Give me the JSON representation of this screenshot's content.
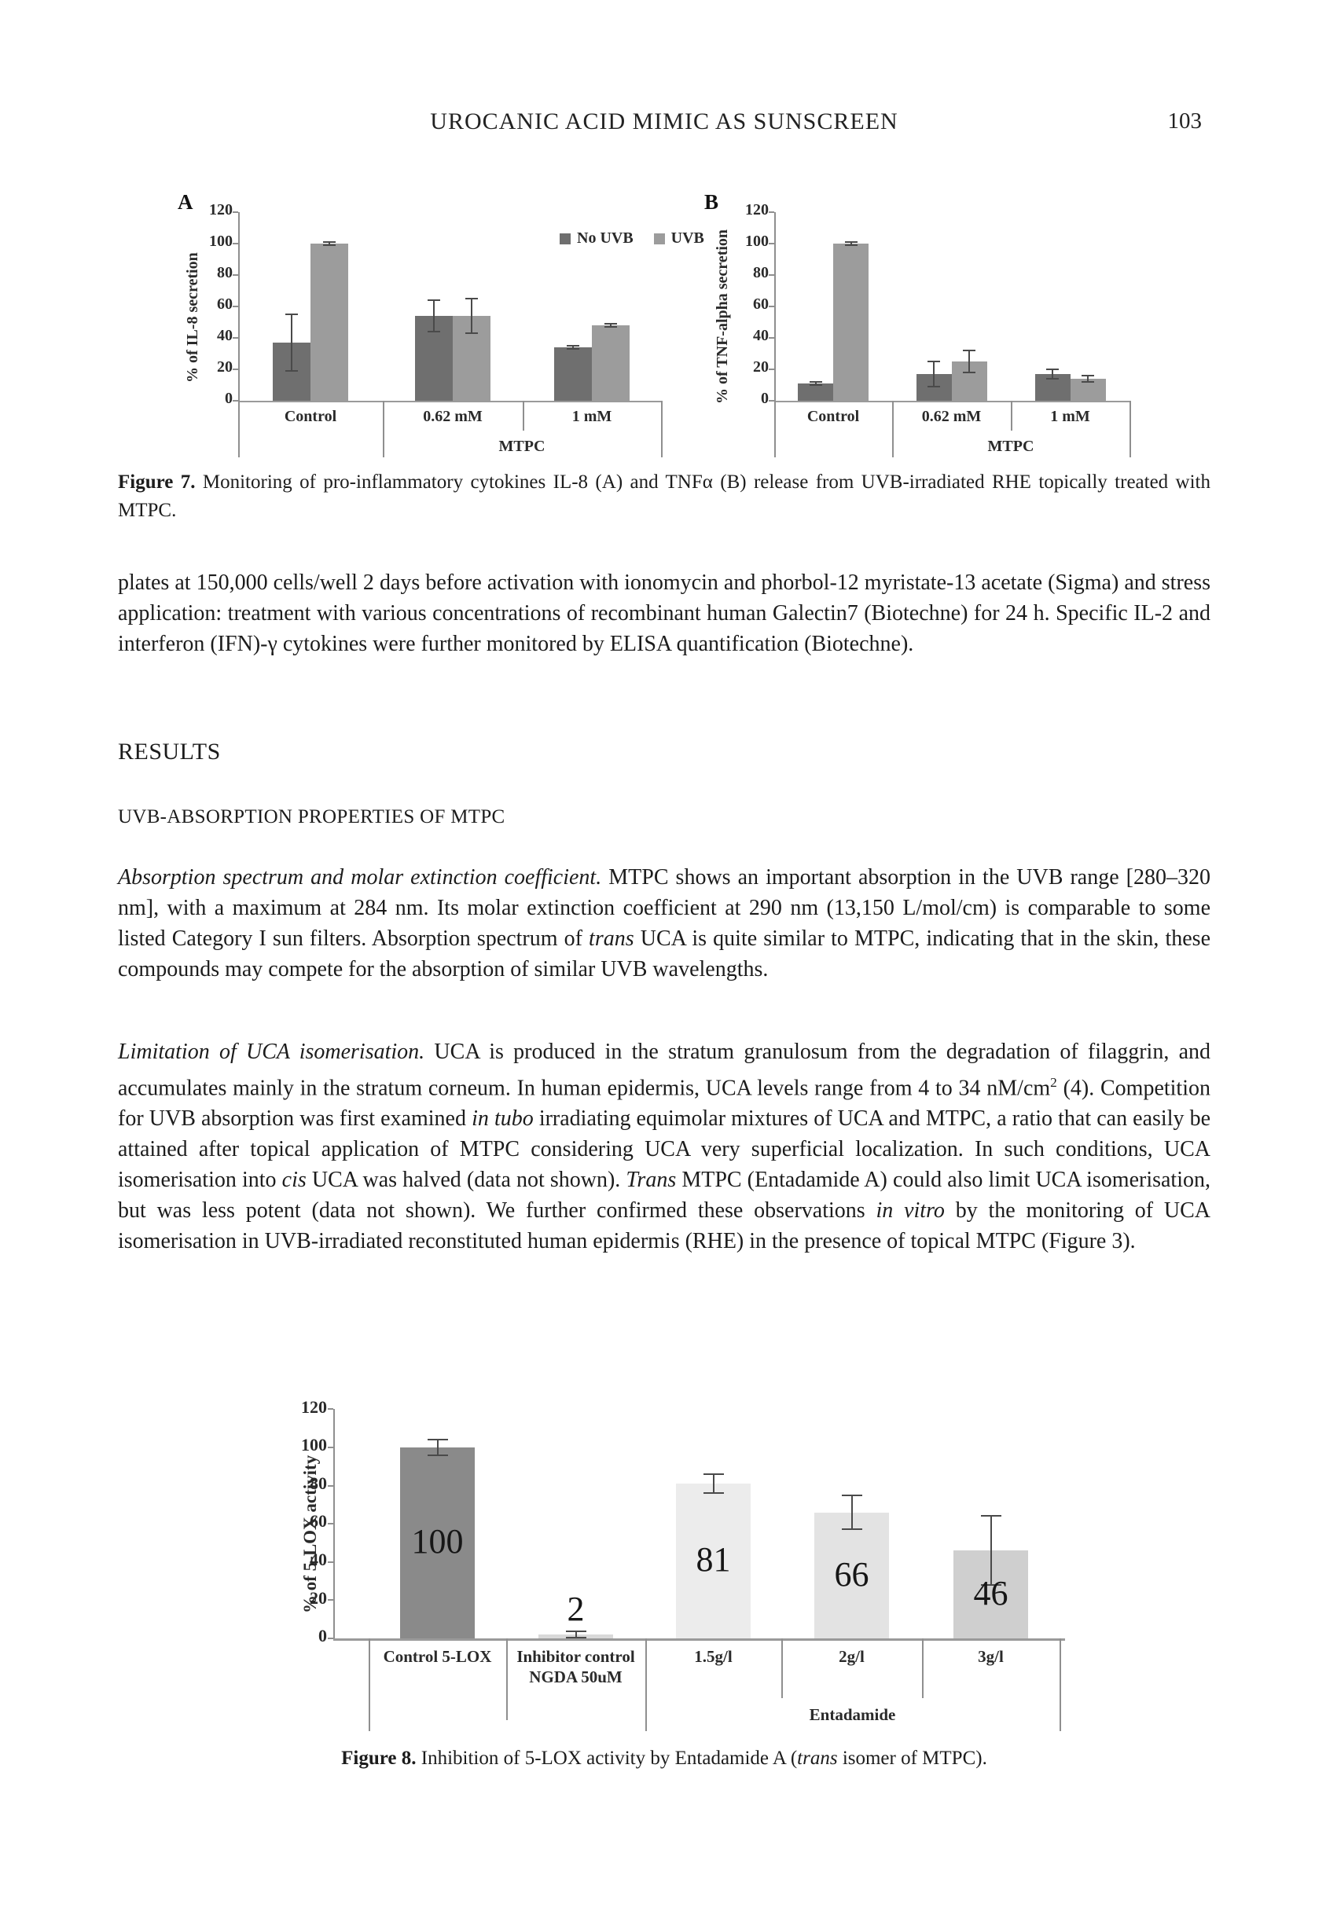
{
  "header": {
    "title": "UROCANIC ACID MIMIC AS SUNSCREEN",
    "page_number": "103"
  },
  "figure7": {
    "legend": [
      {
        "label": "No UVB",
        "color": "#6f6f6f"
      },
      {
        "label": "UVB",
        "color": "#9c9c9c"
      }
    ],
    "caption": [
      {
        "t": "Figure 7.",
        "b": true
      },
      {
        "t": "  Monitoring of pro-inflammatory cytokines IL-8 (A) and TNFα (B) release from UVB-irradiated RHE topically treated with MTPC."
      }
    ]
  },
  "sections": {
    "results": "RESULTS",
    "subsection": "UVB-ABSORPTION PROPERTIES OF MTPC"
  },
  "paragraphs": {
    "p1": [
      {
        "t": "plates at 150,000 cells/well 2 days before activation with ionomycin and phorbol-12 myristate-13 acetate (Sigma) and stress application: treatment with various concentrations of recombinant human Galectin7 (Biotechne) for 24 h. Specific IL-2 and interferon (IFN)-γ cytokines were further monitored by ELISA quantification (Biotechne)."
      }
    ],
    "p2": [
      {
        "t": "Absorption spectrum and molar extinction coefficient.",
        "i": true
      },
      {
        "t": " MTPC shows an important absorption in the UVB range [280–320 nm], with a maximum at 284 nm. Its molar extinction coefficient at 290 nm (13,150 L/mol/cm) is comparable to some listed Category I sun filters. Absorption spectrum of "
      },
      {
        "t": "trans",
        "i": true
      },
      {
        "t": " UCA is quite similar to MTPC, indicating that in the skin, these compounds may compete for the absorption of similar UVB wavelengths."
      }
    ],
    "p3": [
      {
        "t": "Limitation of UCA isomerisation.",
        "i": true
      },
      {
        "t": " UCA is produced in the stratum granulosum from the degradation of filaggrin, and accumulates mainly in the stratum corneum. In human epidermis, UCA levels range from 4 to 34 nM/cm"
      },
      {
        "t": "2",
        "sup": true
      },
      {
        "t": " (4). Competition for UVB absorption was first examined "
      },
      {
        "t": "in tubo",
        "i": true
      },
      {
        "t": " irradiating equimolar mixtures of UCA and MTPC, a ratio that can easily be attained after topical application of MTPC considering UCA very superficial localization. In such conditions, UCA isomerisation into "
      },
      {
        "t": "cis",
        "i": true
      },
      {
        "t": " UCA was halved (data not shown). "
      },
      {
        "t": "Trans",
        "i": true
      },
      {
        "t": " MTPC (Entadamide A) could also limit UCA isomerisation, but was less potent (data not shown). We further confirmed these observations "
      },
      {
        "t": "in vitro",
        "i": true
      },
      {
        "t": " by the monitoring of UCA isomerisation in UVB-irradiated reconstituted human epidermis (RHE) in the presence of topical MTPC (Figure 3)."
      }
    ]
  },
  "figure8": {
    "caption": [
      {
        "t": "Figure 8.",
        "b": true
      },
      {
        "t": "  Inhibition of 5-LOX activity by Entadamide A ("
      },
      {
        "t": "trans",
        "i": true
      },
      {
        "t": " isomer of MTPC)."
      }
    ]
  },
  "chart_data": [
    {
      "id": "fig7a",
      "type": "bar",
      "panel": "A",
      "title": "",
      "ylabel": "% of IL-8 secretion",
      "xlabel": "",
      "ylim": [
        0,
        120
      ],
      "ytick_step": 20,
      "grid": false,
      "legend_position": "top-right",
      "categories": [
        "Control",
        "0.62 mM",
        "1 mM"
      ],
      "group_label": {
        "text": "MTPC",
        "span": [
          1,
          2
        ]
      },
      "series": [
        {
          "name": "No UVB",
          "color": "#6f6f6f",
          "values": [
            37,
            54,
            34
          ],
          "errors": [
            18,
            10,
            1
          ]
        },
        {
          "name": "UVB",
          "color": "#9c9c9c",
          "values": [
            100,
            54,
            48
          ],
          "errors": [
            1,
            11,
            1
          ]
        }
      ]
    },
    {
      "id": "fig7b",
      "type": "bar",
      "panel": "B",
      "title": "",
      "ylabel": "% of TNF-alpha secretion",
      "xlabel": "",
      "ylim": [
        0,
        120
      ],
      "ytick_step": 20,
      "grid": false,
      "categories": [
        "Control",
        "0.62 mM",
        "1 mM"
      ],
      "group_label": {
        "text": "MTPC",
        "span": [
          1,
          2
        ]
      },
      "series": [
        {
          "name": "No UVB",
          "color": "#6f6f6f",
          "values": [
            11,
            17,
            17
          ],
          "errors": [
            1,
            8,
            3
          ]
        },
        {
          "name": "UVB",
          "color": "#9c9c9c",
          "values": [
            100,
            25,
            14
          ],
          "errors": [
            1,
            7,
            2
          ]
        }
      ]
    },
    {
      "id": "fig8",
      "type": "bar",
      "title": "",
      "ylabel": "% of 5-LOX activity",
      "xlabel": "",
      "ylim": [
        0,
        120
      ],
      "ytick_step": 20,
      "grid": false,
      "categories": [
        "Control 5-LOX",
        "Inhibitor control\nNGDA 50uM",
        "1.5g/l",
        "2g/l",
        "3g/l"
      ],
      "group_label": {
        "text": "Entadamide",
        "span": [
          2,
          4
        ]
      },
      "values": [
        100,
        2,
        81,
        66,
        46
      ],
      "errors": [
        4,
        1.5,
        5,
        9,
        18
      ],
      "bar_colors": [
        "#8a8a8a",
        "#d9d9d9",
        "#ececec",
        "#e3e3e3",
        "#cfcfcf"
      ],
      "value_labels": [
        "100",
        "2",
        "81",
        "66",
        "46"
      ]
    }
  ]
}
